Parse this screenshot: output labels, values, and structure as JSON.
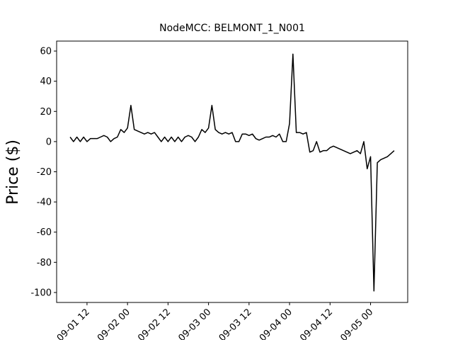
{
  "chart_data": {
    "type": "line",
    "title": "NodeMCC: BELMONT_1_N001",
    "y_label": "Price ($)",
    "color": "#000000",
    "x": [
      "09-01 07",
      "09-01 08",
      "09-01 09",
      "09-01 10",
      "09-01 11",
      "09-01 12",
      "09-01 13",
      "09-01 14",
      "09-01 15",
      "09-01 16",
      "09-01 17",
      "09-01 18",
      "09-01 19",
      "09-01 20",
      "09-01 21",
      "09-01 22",
      "09-01 23",
      "09-02 00",
      "09-02 01",
      "09-02 02",
      "09-02 03",
      "09-02 04",
      "09-02 05",
      "09-02 06",
      "09-02 07",
      "09-02 08",
      "09-02 09",
      "09-02 10",
      "09-02 11",
      "09-02 12",
      "09-02 13",
      "09-02 14",
      "09-02 15",
      "09-02 16",
      "09-02 17",
      "09-02 18",
      "09-02 19",
      "09-02 20",
      "09-02 21",
      "09-02 22",
      "09-02 23",
      "09-03 00",
      "09-03 01",
      "09-03 02",
      "09-03 03",
      "09-03 04",
      "09-03 05",
      "09-03 06",
      "09-03 07",
      "09-03 08",
      "09-03 09",
      "09-03 10",
      "09-03 11",
      "09-03 12",
      "09-03 13",
      "09-03 14",
      "09-03 15",
      "09-03 16",
      "09-03 17",
      "09-03 18",
      "09-03 19",
      "09-03 20",
      "09-03 21",
      "09-03 22",
      "09-03 23",
      "09-04 00",
      "09-04 01",
      "09-04 02",
      "09-04 03",
      "09-04 04",
      "09-04 05",
      "09-04 06",
      "09-04 07",
      "09-04 08",
      "09-04 09",
      "09-04 10",
      "09-04 11",
      "09-04 12",
      "09-04 13",
      "09-04 14",
      "09-04 15",
      "09-04 16",
      "09-04 17",
      "09-04 18",
      "09-04 19",
      "09-04 20",
      "09-04 21",
      "09-04 22",
      "09-04 23",
      "09-05 00",
      "09-05 01",
      "09-05 02",
      "09-05 03",
      "09-05 04",
      "09-05 05",
      "09-05 06",
      "09-05 07"
    ],
    "values": [
      3,
      0,
      3,
      0,
      3,
      0,
      2,
      2,
      2,
      3,
      4,
      3,
      0,
      2,
      3,
      8,
      6,
      9,
      24,
      8,
      7,
      6,
      5,
      6,
      5,
      6,
      3,
      0,
      3,
      0,
      3,
      0,
      3,
      0,
      3,
      4,
      3,
      0,
      3,
      8,
      6,
      9,
      24,
      8,
      6,
      5,
      6,
      5,
      6,
      0,
      0,
      5,
      5,
      4,
      5,
      2,
      1,
      2,
      3,
      3,
      4,
      3,
      5,
      0,
      0,
      12,
      58,
      6,
      6,
      5,
      6,
      -7,
      -6,
      0,
      -7,
      -6,
      -6,
      -4,
      -3,
      -4,
      -5,
      -6,
      -7,
      -8,
      -7,
      -6,
      -8,
      0,
      -18,
      -10,
      -99,
      -14,
      -12,
      -11,
      -10,
      -8,
      -6
    ],
    "xlim": [
      "09-01 03",
      "09-05 11"
    ],
    "xticks": [
      "09-01 12",
      "09-02 00",
      "09-02 12",
      "09-03 00",
      "09-03 12",
      "09-04 00",
      "09-04 12",
      "09-05 00"
    ],
    "ylim": [
      -106.6,
      66.6
    ],
    "yticks": [
      -100,
      -80,
      -60,
      -40,
      -20,
      0,
      20,
      40,
      60
    ]
  }
}
